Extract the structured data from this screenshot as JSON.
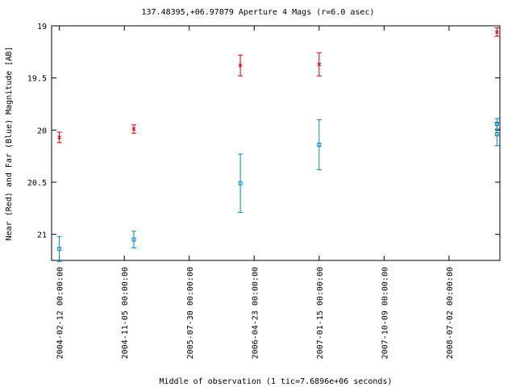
{
  "chart_data": {
    "type": "scatter",
    "title": "137.48395,+06.97079   Aperture 4 Mags (r=6.0 asec)",
    "xlabel": "Middle of observation (1 tic=7.6896e+06 seconds)",
    "ylabel": "Near (Red) and Far (Blue) Magnitude [AB]",
    "x_tick_labels": [
      "2004-02-12 00:00:00",
      "2004-11-05 00:00:00",
      "2005-07-30 00:00:00",
      "2006-04-23 00:00:00",
      "2007-01-15 00:00:00",
      "2007-10-09 00:00:00",
      "2008-07-02 00:00:00"
    ],
    "x_tick_dates": [
      "2004-02-12",
      "2004-11-05",
      "2005-07-30",
      "2006-04-23",
      "2007-01-15",
      "2007-10-09",
      "2008-07-02"
    ],
    "xlim": [
      "2004-01-11",
      "2009-01-27"
    ],
    "y_ticks": [
      19,
      19.5,
      20,
      20.5,
      21
    ],
    "y_tick_labels": [
      "19",
      "19.5",
      "20",
      "20.5",
      "21"
    ],
    "ylim": [
      21.25,
      19
    ],
    "y_inverted": true,
    "grid": false,
    "series": [
      {
        "color": "#cc0000",
        "marker": "x",
        "points": [
          {
            "x": "2004-02-12",
            "y": 20.07,
            "err": 0.05
          },
          {
            "x": "2004-12-14",
            "y": 19.99,
            "err": 0.04
          },
          {
            "x": "2006-02-25",
            "y": 19.38,
            "err": 0.1
          },
          {
            "x": "2007-01-15",
            "y": 19.37,
            "err": 0.11
          },
          {
            "x": "2009-01-15",
            "y": 19.06,
            "err": 0.04
          }
        ]
      },
      {
        "color": "#0088cc",
        "marker": "square",
        "points": [
          {
            "x": "2004-02-12",
            "y": 21.14,
            "err": 0.12
          },
          {
            "x": "2004-12-14",
            "y": 21.05,
            "err": 0.08
          },
          {
            "x": "2006-02-25",
            "y": 20.51,
            "err": 0.28
          },
          {
            "x": "2007-01-15",
            "y": 20.14,
            "err": 0.24
          },
          {
            "x": "2009-01-15",
            "y": 19.94,
            "err": 0.05
          },
          {
            "x": "2009-01-15",
            "y": 20.04,
            "err": 0.11
          }
        ]
      }
    ]
  }
}
